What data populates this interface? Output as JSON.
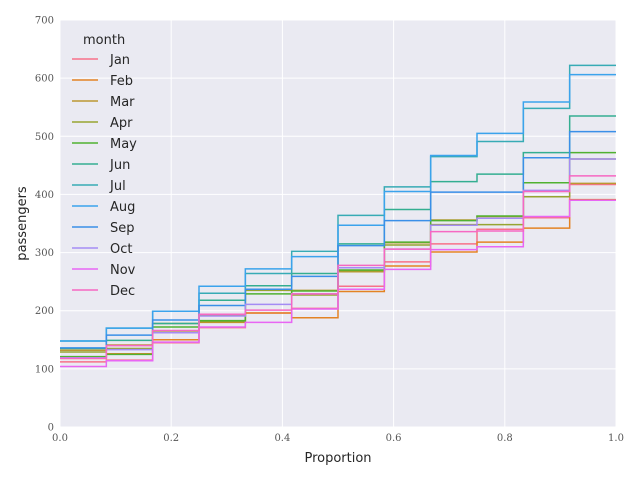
{
  "chart_data": {
    "type": "line",
    "subtype": "ecdf-step",
    "xlabel": "Proportion",
    "ylabel": "passengers",
    "xlim": [
      0.0,
      1.0
    ],
    "ylim": [
      0,
      700
    ],
    "xticks": [
      0.0,
      0.2,
      0.4,
      0.6,
      0.8,
      1.0
    ],
    "xtick_labels": [
      "0.0",
      "0.2",
      "0.4",
      "0.6",
      "0.8",
      "1.0"
    ],
    "yticks": [
      0,
      100,
      200,
      300,
      400,
      500,
      600,
      700
    ],
    "ytick_labels": [
      "0",
      "100",
      "200",
      "300",
      "400",
      "500",
      "600",
      "700"
    ],
    "grid": true,
    "legend_title": "month",
    "legend_position": "top-left",
    "series": [
      {
        "name": "Jan",
        "color": "#f77189",
        "values": [
          112,
          115,
          145,
          171,
          196,
          204,
          242,
          284,
          315,
          340,
          360,
          417
        ]
      },
      {
        "name": "Feb",
        "color": "#e38324",
        "values": [
          118,
          126,
          150,
          180,
          196,
          188,
          233,
          277,
          301,
          318,
          342,
          391
        ]
      },
      {
        "name": "Mar",
        "color": "#bb9832",
        "values": [
          132,
          141,
          178,
          193,
          236,
          235,
          267,
          317,
          356,
          362,
          406,
          419
        ]
      },
      {
        "name": "Apr",
        "color": "#97a431",
        "values": [
          129,
          135,
          163,
          181,
          235,
          227,
          269,
          313,
          348,
          348,
          396,
          461
        ]
      },
      {
        "name": "May",
        "color": "#50b131",
        "values": [
          121,
          125,
          172,
          183,
          229,
          234,
          270,
          318,
          355,
          363,
          420,
          472
        ]
      },
      {
        "name": "Jun",
        "color": "#34ae91",
        "values": [
          135,
          149,
          178,
          218,
          243,
          264,
          315,
          374,
          422,
          435,
          472,
          535
        ]
      },
      {
        "name": "Jul",
        "color": "#37abb5",
        "values": [
          148,
          170,
          199,
          230,
          264,
          302,
          364,
          413,
          465,
          491,
          548,
          622
        ]
      },
      {
        "name": "Aug",
        "color": "#3ba3ec",
        "values": [
          148,
          170,
          199,
          242,
          272,
          293,
          347,
          405,
          467,
          505,
          559,
          606
        ]
      },
      {
        "name": "Sep",
        "color": "#3a8fe8",
        "values": [
          136,
          158,
          184,
          209,
          237,
          259,
          312,
          355,
          404,
          404,
          463,
          508
        ]
      },
      {
        "name": "Oct",
        "color": "#a48cf4",
        "values": [
          119,
          133,
          162,
          191,
          211,
          229,
          274,
          306,
          347,
          359,
          407,
          461
        ]
      },
      {
        "name": "Nov",
        "color": "#e866f4",
        "values": [
          104,
          114,
          146,
          172,
          180,
          203,
          237,
          271,
          305,
          310,
          362,
          390
        ]
      },
      {
        "name": "Dec",
        "color": "#f668c2",
        "values": [
          118,
          140,
          166,
          194,
          201,
          229,
          278,
          306,
          336,
          337,
          405,
          432
        ]
      }
    ]
  }
}
